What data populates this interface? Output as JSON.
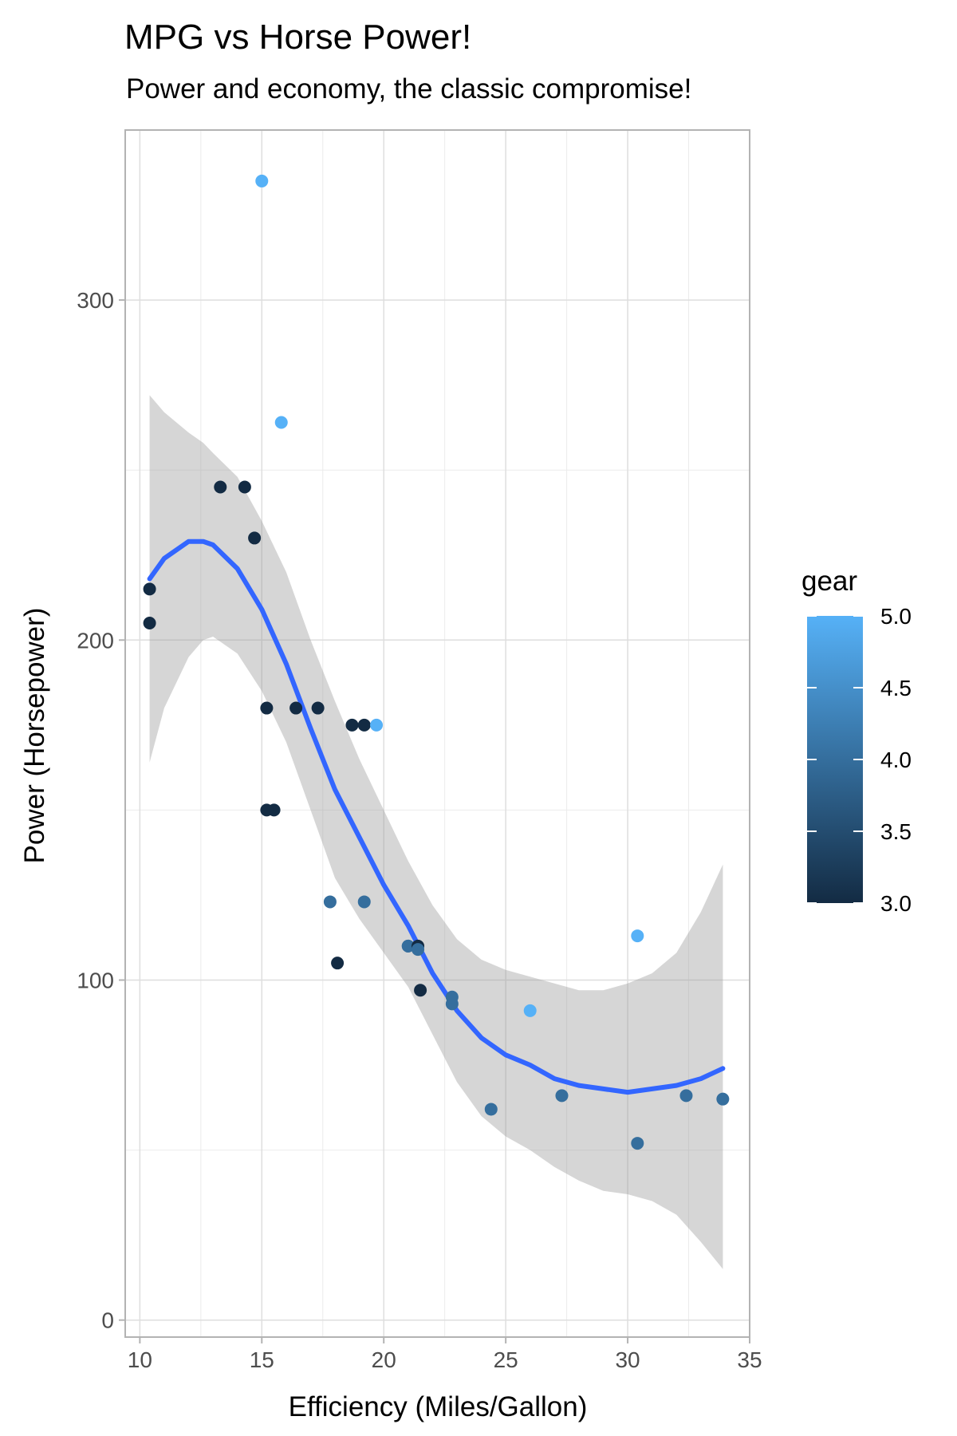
{
  "chart_data": {
    "type": "scatter",
    "title": "MPG vs Horse Power!",
    "subtitle": "Power and economy, the classic compromise!",
    "xlabel": "Efficiency (Miles/Gallon)",
    "ylabel": "Power (Horsepower)",
    "xlim": [
      9.4,
      35.0
    ],
    "ylim": [
      -5,
      350
    ],
    "xticks": [
      10,
      15,
      20,
      25,
      30,
      35
    ],
    "xtick_labels": [
      "10",
      "15",
      "20",
      "25",
      "30",
      "35"
    ],
    "yticks": [
      0,
      100,
      200,
      300
    ],
    "ytick_labels": [
      "0",
      "100",
      "200",
      "300"
    ],
    "grid": true,
    "theme": "light",
    "legend": {
      "title": "gear",
      "position": "right",
      "range": [
        3.0,
        5.0
      ],
      "breaks": [
        5.0,
        4.5,
        4.0,
        3.5,
        3.0
      ],
      "labels": [
        "5.0",
        "4.5",
        "4.0",
        "3.5",
        "3.0"
      ],
      "low_color": "#132B43",
      "high_color": "#56B1F7"
    },
    "points": [
      {
        "x": 21.0,
        "y": 110,
        "gear": 4
      },
      {
        "x": 21.0,
        "y": 110,
        "gear": 4
      },
      {
        "x": 22.8,
        "y": 93,
        "gear": 4
      },
      {
        "x": 21.4,
        "y": 110,
        "gear": 3
      },
      {
        "x": 18.7,
        "y": 175,
        "gear": 3
      },
      {
        "x": 18.1,
        "y": 105,
        "gear": 3
      },
      {
        "x": 14.3,
        "y": 245,
        "gear": 3
      },
      {
        "x": 24.4,
        "y": 62,
        "gear": 4
      },
      {
        "x": 22.8,
        "y": 95,
        "gear": 4
      },
      {
        "x": 19.2,
        "y": 123,
        "gear": 4
      },
      {
        "x": 17.8,
        "y": 123,
        "gear": 4
      },
      {
        "x": 16.4,
        "y": 180,
        "gear": 3
      },
      {
        "x": 17.3,
        "y": 180,
        "gear": 3
      },
      {
        "x": 15.2,
        "y": 180,
        "gear": 3
      },
      {
        "x": 10.4,
        "y": 205,
        "gear": 3
      },
      {
        "x": 10.4,
        "y": 215,
        "gear": 3
      },
      {
        "x": 14.7,
        "y": 230,
        "gear": 3
      },
      {
        "x": 32.4,
        "y": 66,
        "gear": 4
      },
      {
        "x": 30.4,
        "y": 52,
        "gear": 4
      },
      {
        "x": 33.9,
        "y": 65,
        "gear": 4
      },
      {
        "x": 21.5,
        "y": 97,
        "gear": 3
      },
      {
        "x": 15.5,
        "y": 150,
        "gear": 3
      },
      {
        "x": 15.2,
        "y": 150,
        "gear": 3
      },
      {
        "x": 13.3,
        "y": 245,
        "gear": 3
      },
      {
        "x": 19.2,
        "y": 175,
        "gear": 3
      },
      {
        "x": 27.3,
        "y": 66,
        "gear": 4
      },
      {
        "x": 26.0,
        "y": 91,
        "gear": 5
      },
      {
        "x": 30.4,
        "y": 113,
        "gear": 5
      },
      {
        "x": 15.8,
        "y": 264,
        "gear": 5
      },
      {
        "x": 19.7,
        "y": 175,
        "gear": 5
      },
      {
        "x": 15.0,
        "y": 335,
        "gear": 5
      },
      {
        "x": 21.4,
        "y": 109,
        "gear": 4
      }
    ],
    "smooth": {
      "method": "loess",
      "color": "#3366FF",
      "band_color": "#999999",
      "fit": [
        {
          "x": 10.4,
          "y": 218,
          "lo": 164,
          "hi": 272
        },
        {
          "x": 11.0,
          "y": 224,
          "lo": 180,
          "hi": 267
        },
        {
          "x": 12.0,
          "y": 229,
          "lo": 195,
          "hi": 261
        },
        {
          "x": 12.6,
          "y": 229,
          "lo": 200,
          "hi": 258
        },
        {
          "x": 13.0,
          "y": 228,
          "lo": 201,
          "hi": 255
        },
        {
          "x": 14.0,
          "y": 221,
          "lo": 196,
          "hi": 248
        },
        {
          "x": 15.0,
          "y": 209,
          "lo": 185,
          "hi": 235
        },
        {
          "x": 16.0,
          "y": 193,
          "lo": 170,
          "hi": 220
        },
        {
          "x": 17.0,
          "y": 174,
          "lo": 150,
          "hi": 200
        },
        {
          "x": 18.0,
          "y": 156,
          "lo": 130,
          "hi": 182
        },
        {
          "x": 19.0,
          "y": 142,
          "lo": 118,
          "hi": 165
        },
        {
          "x": 20.0,
          "y": 128,
          "lo": 108,
          "hi": 150
        },
        {
          "x": 21.0,
          "y": 116,
          "lo": 98,
          "hi": 135
        },
        {
          "x": 22.0,
          "y": 102,
          "lo": 84,
          "hi": 122
        },
        {
          "x": 23.0,
          "y": 91,
          "lo": 70,
          "hi": 112
        },
        {
          "x": 24.0,
          "y": 83,
          "lo": 60,
          "hi": 106
        },
        {
          "x": 25.0,
          "y": 78,
          "lo": 54,
          "hi": 103
        },
        {
          "x": 26.0,
          "y": 75,
          "lo": 50,
          "hi": 101
        },
        {
          "x": 27.0,
          "y": 71,
          "lo": 45,
          "hi": 99
        },
        {
          "x": 28.0,
          "y": 69,
          "lo": 41,
          "hi": 97
        },
        {
          "x": 29.0,
          "y": 68,
          "lo": 38,
          "hi": 97
        },
        {
          "x": 30.0,
          "y": 67,
          "lo": 37,
          "hi": 99
        },
        {
          "x": 31.0,
          "y": 68,
          "lo": 35,
          "hi": 102
        },
        {
          "x": 32.0,
          "y": 69,
          "lo": 31,
          "hi": 108
        },
        {
          "x": 33.0,
          "y": 71,
          "lo": 23,
          "hi": 120
        },
        {
          "x": 33.9,
          "y": 74,
          "lo": 15,
          "hi": 134
        }
      ]
    }
  }
}
